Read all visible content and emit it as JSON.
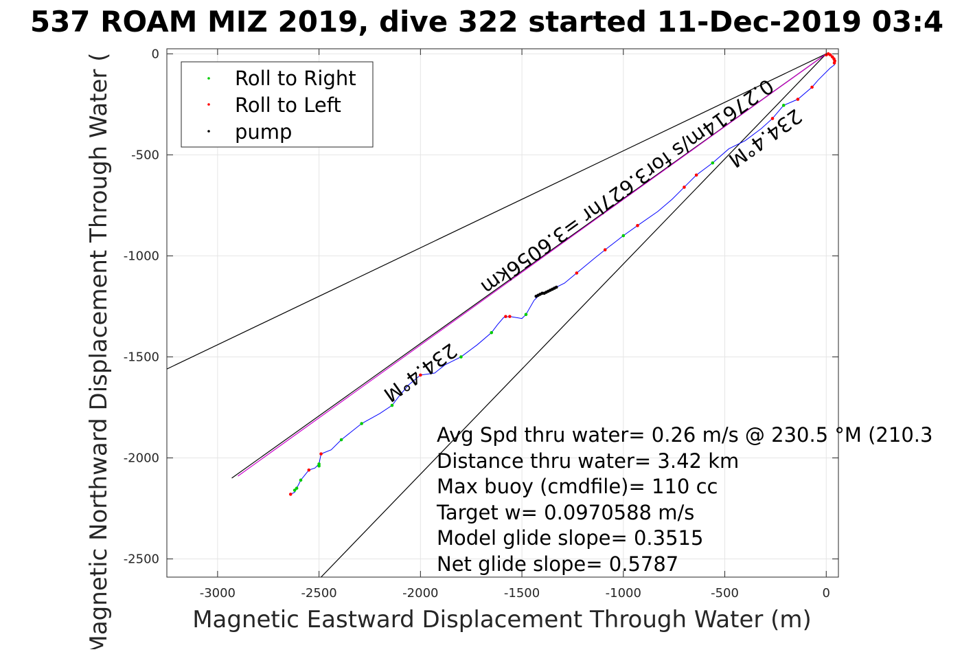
{
  "chart_data": {
    "type": "line",
    "title": "537 ROAM MIZ 2019, dive 322 started 11-Dec-2019 03:4",
    "xlabel": "Magnetic Eastward Displacement Through Water (m)",
    "ylabel": "Magnetic Northward Displacement Through Water (",
    "xlim": [
      -3250,
      60
    ],
    "ylim": [
      -2590,
      25
    ],
    "xticks": [
      -3000,
      -2500,
      -2000,
      -1500,
      -1000,
      -500,
      0
    ],
    "xtick_labels": [
      "-3000",
      "-2500",
      "-2000",
      "-1500",
      "-1000",
      "-500",
      "0"
    ],
    "yticks": [
      0,
      -500,
      -1000,
      -1500,
      -2000,
      -2500
    ],
    "ytick_labels": [
      "0",
      "-500",
      "-1000",
      "-1500",
      "-2000",
      "-2500"
    ],
    "grid": true,
    "legend": {
      "placement": "top-left",
      "entries": [
        {
          "label": "Roll to Right",
          "color": "#00cc00"
        },
        {
          "label": "Roll to Left",
          "color": "#ff0000"
        },
        {
          "label": "pump",
          "color": "#000000"
        }
      ]
    },
    "reference_lines": [
      {
        "name": "cone-upper",
        "color": "#000000",
        "points": [
          [
            0,
            0
          ],
          [
            -3250,
            -1560
          ]
        ]
      },
      {
        "name": "cone-lower",
        "color": "#000000",
        "points": [
          [
            0,
            0
          ],
          [
            -2490,
            -2590
          ]
        ]
      },
      {
        "name": "heading-234.4",
        "color": "#000000",
        "points": [
          [
            0,
            0
          ],
          [
            -2930,
            -2100
          ]
        ]
      },
      {
        "name": "net-track",
        "color": "#cc00cc",
        "points": [
          [
            0,
            0
          ],
          [
            -2900,
            -2090
          ]
        ]
      }
    ],
    "track": {
      "color": "#0000ff",
      "points": [
        [
          0,
          0
        ],
        [
          30,
          -10
        ],
        [
          45,
          -30
        ],
        [
          40,
          -55
        ],
        [
          20,
          -70
        ],
        [
          -40,
          -130
        ],
        [
          -70,
          -165
        ],
        [
          -140,
          -225
        ],
        [
          -210,
          -255
        ],
        [
          -265,
          -320
        ],
        [
          -320,
          -370
        ],
        [
          -400,
          -430
        ],
        [
          -480,
          -470
        ],
        [
          -560,
          -540
        ],
        [
          -640,
          -600
        ],
        [
          -700,
          -660
        ],
        [
          -760,
          -720
        ],
        [
          -830,
          -780
        ],
        [
          -930,
          -850
        ],
        [
          -1000,
          -900
        ],
        [
          -1090,
          -970
        ],
        [
          -1140,
          -1010
        ],
        [
          -1230,
          -1085
        ],
        [
          -1290,
          -1135
        ],
        [
          -1340,
          -1160
        ],
        [
          -1410,
          -1190
        ],
        [
          -1440,
          -1220
        ],
        [
          -1480,
          -1290
        ],
        [
          -1500,
          -1310
        ],
        [
          -1560,
          -1300
        ],
        [
          -1590,
          -1305
        ],
        [
          -1620,
          -1340
        ],
        [
          -1650,
          -1380
        ],
        [
          -1720,
          -1440
        ],
        [
          -1800,
          -1500
        ],
        [
          -1880,
          -1540
        ],
        [
          -1930,
          -1580
        ],
        [
          -2000,
          -1590
        ],
        [
          -2060,
          -1640
        ],
        [
          -2110,
          -1700
        ],
        [
          -2140,
          -1740
        ],
        [
          -2200,
          -1780
        ],
        [
          -2290,
          -1830
        ],
        [
          -2340,
          -1870
        ],
        [
          -2390,
          -1910
        ],
        [
          -2440,
          -1960
        ],
        [
          -2490,
          -1980
        ],
        [
          -2500,
          -2030
        ],
        [
          -2520,
          -2050
        ],
        [
          -2550,
          -2060
        ],
        [
          -2590,
          -2110
        ],
        [
          -2610,
          -2150
        ],
        [
          -2620,
          -2170
        ],
        [
          -2640,
          -2180
        ]
      ]
    },
    "markers": {
      "roll_right": [
        [
          -210,
          -255
        ],
        [
          -560,
          -540
        ],
        [
          -1000,
          -900
        ],
        [
          -1480,
          -1290
        ],
        [
          -1650,
          -1380
        ],
        [
          -1800,
          -1500
        ],
        [
          -2140,
          -1740
        ],
        [
          -2290,
          -1830
        ],
        [
          -2390,
          -1910
        ],
        [
          -2500,
          -2030
        ],
        [
          -2500,
          -2040
        ],
        [
          -2590,
          -2110
        ],
        [
          -2610,
          -2150
        ],
        [
          -2620,
          -2160
        ]
      ],
      "roll_left": [
        [
          0,
          -5
        ],
        [
          10,
          0
        ],
        [
          20,
          -5
        ],
        [
          30,
          -15
        ],
        [
          38,
          -25
        ],
        [
          42,
          -35
        ],
        [
          40,
          -45
        ],
        [
          -70,
          -165
        ],
        [
          -140,
          -225
        ],
        [
          -265,
          -320
        ],
        [
          -640,
          -600
        ],
        [
          -700,
          -660
        ],
        [
          -930,
          -850
        ],
        [
          -1090,
          -970
        ],
        [
          -1230,
          -1085
        ],
        [
          -1560,
          -1300
        ],
        [
          -1580,
          -1300
        ],
        [
          -2000,
          -1590
        ],
        [
          -2490,
          -1980
        ],
        [
          -2550,
          -2060
        ],
        [
          -2640,
          -2180
        ]
      ],
      "pump": [
        [
          -1410,
          -1190
        ],
        [
          -1400,
          -1185
        ],
        [
          -1390,
          -1185
        ],
        [
          -1380,
          -1180
        ],
        [
          -1370,
          -1175
        ],
        [
          -1360,
          -1170
        ],
        [
          -1350,
          -1165
        ],
        [
          -1340,
          -1160
        ],
        [
          -1330,
          -1155
        ],
        [
          -1430,
          -1200
        ],
        [
          -1420,
          -1195
        ]
      ]
    },
    "annotations": [
      {
        "text": "234.4°M",
        "x": -2020,
        "y": -1550,
        "rotate": 144.4
      },
      {
        "text": "234.4°M",
        "x": -320,
        "y": -390,
        "rotate": 144.4
      },
      {
        "text": "0.27614m/s for3.627hr =3.6056km",
        "x": -1000,
        "y": -630,
        "rotate": 144.4
      }
    ],
    "stats": [
      "Avg Spd thru water=  0.26 m/s @ 230.5 °M (210.3",
      "Distance thru water=  3.42 km",
      "Max buoy (cmdfile)= 110 cc",
      "Target w= 0.0970588 m/s",
      "Model glide slope= 0.3515",
      "Net glide slope= 0.5787"
    ]
  }
}
